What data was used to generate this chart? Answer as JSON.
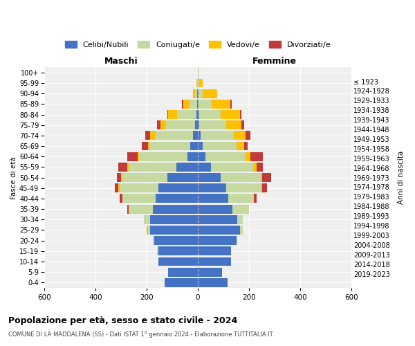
{
  "age_groups": [
    "0-4",
    "5-9",
    "10-14",
    "15-19",
    "20-24",
    "25-29",
    "30-34",
    "35-39",
    "40-44",
    "45-49",
    "50-54",
    "55-59",
    "60-64",
    "65-69",
    "70-74",
    "75-79",
    "80-84",
    "85-89",
    "90-94",
    "95-99",
    "100+"
  ],
  "birth_years": [
    "2019-2023",
    "2014-2018",
    "2009-2013",
    "2004-2008",
    "1999-2003",
    "1994-1998",
    "1989-1993",
    "1984-1988",
    "1979-1983",
    "1974-1978",
    "1969-1973",
    "1964-1968",
    "1959-1963",
    "1954-1958",
    "1949-1953",
    "1944-1948",
    "1939-1943",
    "1934-1938",
    "1929-1933",
    "1924-1928",
    "≤ 1923"
  ],
  "colors": {
    "celibi": "#4472C4",
    "coniugati": "#c5d9a0",
    "vedovi": "#ffc000",
    "divorziati": "#c0393b"
  },
  "maschi": {
    "celibi": [
      130,
      115,
      155,
      155,
      170,
      185,
      185,
      175,
      165,
      155,
      120,
      85,
      40,
      30,
      20,
      10,
      5,
      3,
      2,
      0,
      0
    ],
    "coniugati": [
      0,
      0,
      0,
      5,
      5,
      10,
      25,
      95,
      130,
      150,
      175,
      185,
      190,
      155,
      145,
      115,
      75,
      30,
      8,
      2,
      0
    ],
    "vedovi": [
      0,
      0,
      0,
      0,
      0,
      5,
      0,
      0,
      0,
      5,
      5,
      5,
      5,
      10,
      20,
      20,
      35,
      25,
      10,
      3,
      0
    ],
    "divorziati": [
      0,
      0,
      0,
      0,
      0,
      0,
      0,
      5,
      10,
      15,
      15,
      35,
      40,
      25,
      20,
      15,
      5,
      5,
      0,
      0,
      0
    ]
  },
  "femmine": {
    "celibi": [
      115,
      95,
      130,
      130,
      150,
      165,
      155,
      135,
      120,
      110,
      90,
      50,
      30,
      20,
      10,
      5,
      5,
      3,
      2,
      0,
      0
    ],
    "coniugati": [
      0,
      0,
      0,
      0,
      5,
      10,
      20,
      65,
      100,
      135,
      155,
      165,
      155,
      130,
      130,
      105,
      85,
      50,
      18,
      5,
      0
    ],
    "vedovi": [
      0,
      0,
      0,
      0,
      0,
      0,
      0,
      0,
      0,
      5,
      5,
      15,
      20,
      30,
      45,
      60,
      75,
      75,
      55,
      15,
      3
    ],
    "divorziati": [
      0,
      0,
      0,
      0,
      0,
      0,
      0,
      0,
      10,
      20,
      35,
      25,
      50,
      15,
      20,
      10,
      5,
      5,
      0,
      0,
      0
    ]
  },
  "title": "Popolazione per età, sesso e stato civile - 2024",
  "subtitle": "COMUNE DI LA MADDALENA (SS) - Dati ISTAT 1° gennaio 2024 - Elaborazione TUTTITALIA.IT",
  "xlabel_left": "Maschi",
  "xlabel_right": "Femmine",
  "ylabel_left": "Fasce di età",
  "ylabel_right": "Anni di nascita",
  "xlim": 600,
  "xticks": [
    -600,
    -400,
    -200,
    0,
    200,
    400,
    600
  ],
  "xticklabels": [
    "600",
    "400",
    "200",
    "0",
    "200",
    "400",
    "600"
  ],
  "legend_labels": [
    "Celibi/Nubili",
    "Coniugati/e",
    "Vedovi/e",
    "Divorziati/e"
  ],
  "bg_color": "#ffffff",
  "plot_bg_color": "#efefef",
  "grid_color": "#ffffff",
  "bar_height": 0.85
}
